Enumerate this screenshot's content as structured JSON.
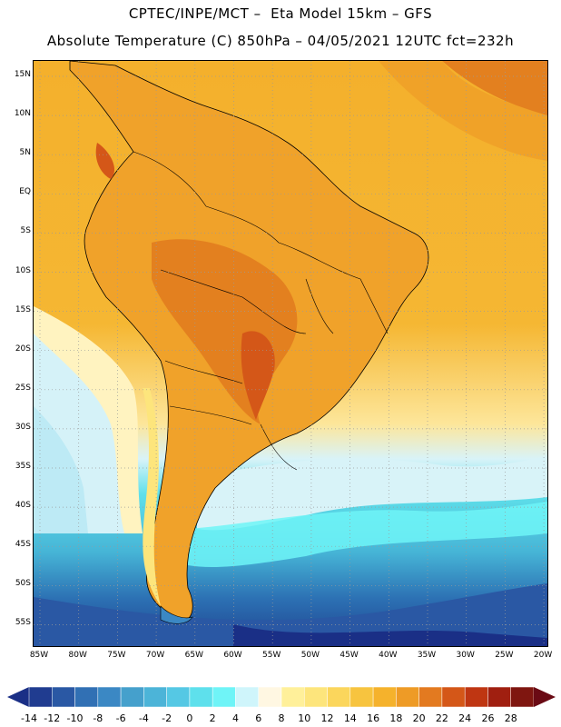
{
  "title_line1": "CPTEC/INPE/MCT –  Eta Model 15km – GFS",
  "title_line2": "Absolute Temperature (C) 850hPa – 04/05/2021 12UTC fct=232h",
  "lat_labels": [
    "15N",
    "10N",
    "5N",
    "EQ",
    "5S",
    "10S",
    "15S",
    "20S",
    "25S",
    "30S",
    "35S",
    "40S",
    "45S",
    "50S",
    "55S"
  ],
  "lon_labels": [
    "85W",
    "80W",
    "75W",
    "70W",
    "65W",
    "60W",
    "55W",
    "50W",
    "45W",
    "40W",
    "35W",
    "30W",
    "25W",
    "20W"
  ],
  "colorbar": {
    "labels": [
      "-14",
      "-12",
      "-10",
      "-8",
      "-6",
      "-4",
      "-2",
      "0",
      "2",
      "4",
      "6",
      "8",
      "10",
      "12",
      "14",
      "16",
      "18",
      "20",
      "22",
      "24",
      "26",
      "28"
    ],
    "low_color": "#1a2f86",
    "high_color": "#6a0a14",
    "colors": [
      "#203c90",
      "#2a58a4",
      "#3170b4",
      "#3b88c4",
      "#45a0cc",
      "#4cb4d8",
      "#55c8e4",
      "#5ee0ec",
      "#6ff4f7",
      "#cff5fb",
      "#fff7e2",
      "#fff09a",
      "#fde57c",
      "#fbd65c",
      "#f7c43f",
      "#f5b22c",
      "#ee9b26",
      "#e37a20",
      "#d45718",
      "#bf3612",
      "#a01f10",
      "#7f1610"
    ]
  },
  "colors": {
    "ocean_far_south": "#1f4490",
    "ocean_south": "#2c70b3",
    "ocean_mid": "#46b4d6",
    "ocean_cyan": "#5fe0ea",
    "ocean_light": "#d8f3f8",
    "warm_ocean": "#f5b52f",
    "land_hot": "#e2861f"
  }
}
